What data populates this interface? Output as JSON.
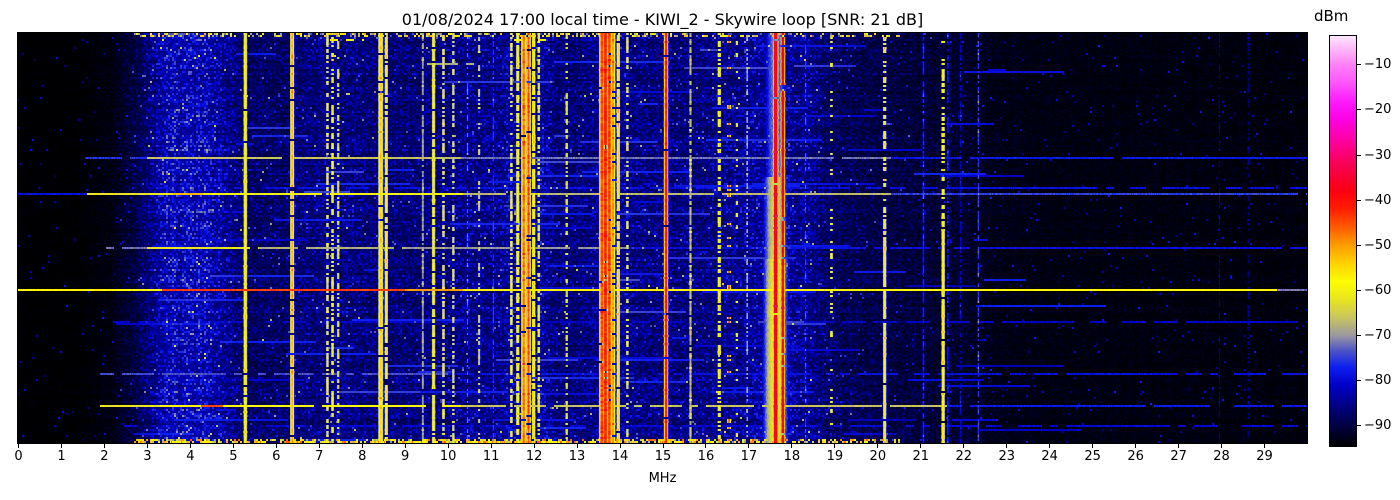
{
  "chart_data": {
    "type": "heatmap",
    "title": "01/08/2024 17:00 local time - KIWI_2 - Skywire loop [SNR: 21 dB]",
    "xlabel": "MHz",
    "x_range_mhz": [
      0,
      30
    ],
    "x_ticks": [
      0,
      1,
      2,
      3,
      4,
      5,
      6,
      7,
      8,
      9,
      10,
      11,
      12,
      13,
      14,
      15,
      16,
      17,
      18,
      19,
      20,
      21,
      22,
      23,
      24,
      25,
      26,
      27,
      28,
      29
    ],
    "y_ticks": [],
    "colorbar": {
      "label": "dBm",
      "ticks": [
        -10,
        -20,
        -30,
        -40,
        -50,
        -60,
        -70,
        -80,
        -90
      ],
      "vmin": -94.5,
      "vmax": -3.6,
      "stops": [
        [
          -94.5,
          "#000000"
        ],
        [
          -90,
          "#000041"
        ],
        [
          -86,
          "#00007d"
        ],
        [
          -81,
          "#0000c8"
        ],
        [
          -77,
          "#0d1ff0"
        ],
        [
          -73.5,
          "#4a52c8"
        ],
        [
          -70,
          "#9b97a0"
        ],
        [
          -66,
          "#c8c55e"
        ],
        [
          -62,
          "#e8e61e"
        ],
        [
          -58,
          "#fdfd00"
        ],
        [
          -54,
          "#ffd300"
        ],
        [
          -50,
          "#ff9d00"
        ],
        [
          -46,
          "#ff5a00"
        ],
        [
          -42,
          "#ff1e00"
        ],
        [
          -38,
          "#fb0011"
        ],
        [
          -34,
          "#f7003c"
        ],
        [
          -30,
          "#fb0071"
        ],
        [
          -26,
          "#ff00ad"
        ],
        [
          -22,
          "#fe00e4"
        ],
        [
          -18,
          "#fe1cfe"
        ],
        [
          -14,
          "#fe55fa"
        ],
        [
          -10,
          "#fd81f6"
        ],
        [
          -6,
          "#fdc0f8"
        ],
        [
          -3.6,
          "#fee7fc"
        ]
      ]
    },
    "noise_envelope": [
      [
        0,
        0.05
      ],
      [
        1.4,
        0.055
      ],
      [
        2.2,
        0.1
      ],
      [
        2.8,
        0.3
      ],
      [
        3.2,
        0.5
      ],
      [
        3.6,
        0.6
      ],
      [
        4.3,
        0.6
      ],
      [
        4.8,
        0.5
      ],
      [
        5.3,
        0.38
      ],
      [
        6.2,
        0.37
      ],
      [
        6.9,
        0.45
      ],
      [
        7.8,
        0.46
      ],
      [
        8.4,
        0.41
      ],
      [
        9.2,
        0.42
      ],
      [
        10.0,
        0.46
      ],
      [
        10.8,
        0.46
      ],
      [
        11.5,
        0.52
      ],
      [
        12.2,
        0.52
      ],
      [
        12.8,
        0.4
      ],
      [
        13.3,
        0.45
      ],
      [
        14.0,
        0.5
      ],
      [
        14.8,
        0.44
      ],
      [
        15.6,
        0.44
      ],
      [
        16.4,
        0.48
      ],
      [
        17.2,
        0.52
      ],
      [
        17.9,
        0.55
      ],
      [
        18.5,
        0.45
      ],
      [
        19.2,
        0.33
      ],
      [
        20.0,
        0.27
      ],
      [
        21.0,
        0.23
      ],
      [
        22.0,
        0.19
      ],
      [
        22.7,
        0.13
      ],
      [
        23.5,
        0.11
      ],
      [
        25.0,
        0.1
      ],
      [
        27.0,
        0.095
      ],
      [
        29.0,
        0.09
      ],
      [
        30,
        0.09
      ]
    ],
    "vertical_signals": [
      {
        "f": 5.28,
        "s": 1.2,
        "dbm": -57,
        "duty": [
          0.97,
          0.97
        ]
      },
      {
        "f": 6.37,
        "s": 1.2,
        "dbm": -52,
        "duty": [
          0.92,
          0.92
        ]
      },
      {
        "f": 7.19,
        "s": 1.0,
        "dbm": -61,
        "duty": [
          0.55,
          0.6
        ]
      },
      {
        "f": 7.31,
        "s": 1.0,
        "dbm": -60,
        "duty": [
          0.5,
          0.6
        ]
      },
      {
        "f": 7.44,
        "s": 1.0,
        "dbm": -62,
        "duty": [
          0.45,
          0.5
        ]
      },
      {
        "f": 8.43,
        "s": 1.5,
        "dbm": -54,
        "duty": [
          0.97,
          0.97
        ]
      },
      {
        "f": 8.56,
        "s": 1.1,
        "dbm": -57,
        "duty": [
          0.85,
          0.8
        ]
      },
      {
        "f": 9.41,
        "s": 1.1,
        "dbm": -69,
        "duty": [
          0.8,
          0.8
        ]
      },
      {
        "f": 9.66,
        "s": 1.2,
        "dbm": -59,
        "duty": [
          0.9,
          0.85
        ]
      },
      {
        "f": 9.89,
        "s": 1.1,
        "dbm": -62,
        "duty": [
          0.65,
          0.6
        ]
      },
      {
        "f": 10.12,
        "s": 1.0,
        "dbm": -62,
        "duty": [
          0.5,
          0.5
        ]
      },
      {
        "f": 10.45,
        "s": 0.9,
        "dbm": -72,
        "duty": [
          0.5,
          0.5
        ]
      },
      {
        "f": 10.72,
        "s": 1.0,
        "dbm": -64,
        "duty": [
          0.4,
          0.45
        ]
      },
      {
        "f": 11.05,
        "s": 0.9,
        "dbm": -75,
        "duty": [
          0.6,
          0.6
        ]
      },
      {
        "f": 11.47,
        "s": 1.0,
        "dbm": -60,
        "duty": [
          0.6,
          0.65
        ]
      },
      {
        "f": 11.62,
        "s": 1.1,
        "dbm": -57,
        "duty": [
          0.8,
          0.8
        ]
      },
      {
        "f": 11.76,
        "s": 1.4,
        "dbm": -47,
        "duty": [
          0.96,
          0.96
        ]
      },
      {
        "f": 11.87,
        "s": 1.2,
        "dbm": -45,
        "duty": [
          0.9,
          0.9
        ]
      },
      {
        "f": 11.99,
        "s": 1.1,
        "dbm": -56,
        "duty": [
          0.85,
          0.8
        ]
      },
      {
        "f": 12.11,
        "s": 1.0,
        "dbm": -60,
        "duty": [
          0.6,
          0.6
        ]
      },
      {
        "f": 12.76,
        "s": 1.0,
        "dbm": -62,
        "duty": [
          0.4,
          0.45
        ]
      },
      {
        "f": 13.58,
        "s": 1.5,
        "dbm": -44,
        "duty": [
          0.97,
          0.97
        ]
      },
      {
        "f": 13.66,
        "s": 1.5,
        "dbm": -41,
        "duty": [
          0.97,
          0.97
        ]
      },
      {
        "f": 13.75,
        "s": 1.4,
        "dbm": -43,
        "duty": [
          0.95,
          0.95
        ]
      },
      {
        "f": 13.84,
        "s": 1.2,
        "dbm": -49,
        "duty": [
          0.9,
          0.9
        ]
      },
      {
        "f": 13.96,
        "s": 1.1,
        "dbm": -55,
        "duty": [
          0.9,
          0.9
        ]
      },
      {
        "f": 14.17,
        "s": 1.0,
        "dbm": -61,
        "duty": [
          0.45,
          0.5
        ]
      },
      {
        "f": 15.07,
        "s": 1.1,
        "dbm": -40,
        "duty": [
          0.97,
          0.97
        ]
      },
      {
        "f": 15.64,
        "s": 1.1,
        "dbm": -67,
        "duty": [
          0.8,
          0.85
        ],
        "burst": -58
      },
      {
        "f": 16.31,
        "s": 1.1,
        "dbm": -56,
        "duty": [
          0.55,
          0.6
        ]
      },
      {
        "f": 16.54,
        "s": 1.0,
        "dbm": -45,
        "duty": [
          0.16,
          0.16
        ]
      },
      {
        "f": 16.72,
        "s": 0.9,
        "dbm": -58,
        "duty": [
          0.15,
          0.15
        ]
      },
      {
        "f": 16.96,
        "s": 0.9,
        "dbm": -68,
        "duty": [
          0.5,
          0.5
        ]
      },
      {
        "f": 17.62,
        "s": 1.3,
        "dbm": -34,
        "duty": [
          0.97,
          0.97
        ],
        "glow": {
          "sigma": 7,
          "top": -71,
          "mid": -64,
          "bot": -61
        }
      },
      {
        "f": 17.79,
        "s": 1.1,
        "dbm": -37,
        "duty": [
          0.93,
          0.93
        ]
      },
      {
        "f": 18.32,
        "s": 0.9,
        "dbm": -74,
        "duty": [
          0.5,
          0.5
        ]
      },
      {
        "f": 18.92,
        "s": 1.0,
        "dbm": -58,
        "duty": [
          0.2,
          0.22
        ]
      },
      {
        "f": 20.16,
        "s": 1.1,
        "dbm": -57,
        "duty": [
          0.55,
          0.95
        ]
      },
      {
        "f": 21.06,
        "s": 0.9,
        "dbm": -77,
        "duty": [
          0.8,
          0.8
        ]
      },
      {
        "f": 21.52,
        "s": 1.1,
        "dbm": -57,
        "duty": [
          0.5,
          0.95
        ]
      },
      {
        "f": 21.63,
        "s": 0.9,
        "dbm": -77,
        "duty": [
          0.7,
          0.7
        ]
      },
      {
        "f": 21.92,
        "s": 0.8,
        "dbm": -80,
        "duty": [
          0.6,
          0.6
        ]
      },
      {
        "f": 22.34,
        "s": 0.9,
        "dbm": -75,
        "duty": [
          0.7,
          0.7
        ]
      },
      {
        "f": 27.95,
        "s": 0.8,
        "dbm": -84,
        "duty": [
          0.55,
          0.55
        ]
      },
      {
        "f": 28.62,
        "s": 0.8,
        "dbm": -84,
        "duty": [
          0.5,
          0.5
        ]
      }
    ],
    "horizontal_events": [
      {
        "y": 0.015,
        "duty": 0.7,
        "segs": [
          [
            6.9,
            8.05,
            -57
          ],
          [
            11.3,
            12.3,
            -60
          ]
        ]
      },
      {
        "y": 0.072,
        "duty": 0.8,
        "segs": [
          [
            9.5,
            10.75,
            -68
          ]
        ]
      },
      {
        "y": 0.3,
        "duty": 0.95,
        "segs": [
          [
            1.55,
            3.0,
            -76
          ],
          [
            3.0,
            10.3,
            -66
          ],
          [
            10.3,
            20.3,
            -72
          ],
          [
            20.3,
            30,
            -78
          ]
        ]
      },
      {
        "y": 0.378,
        "duty": 0.8,
        "segs": [
          [
            3.2,
            30,
            -79
          ]
        ]
      },
      {
        "y": 0.392,
        "duty": 0.95,
        "segs": [
          [
            0,
            1.6,
            -79
          ],
          [
            1.6,
            3.6,
            -62
          ],
          [
            3.6,
            4.3,
            -52
          ],
          [
            4.3,
            10.35,
            -60
          ],
          [
            10.35,
            20.3,
            -67
          ],
          [
            20.3,
            30,
            -75
          ]
        ]
      },
      {
        "y": 0.522,
        "duty": 0.85,
        "segs": [
          [
            2.0,
            3.0,
            -72
          ],
          [
            3.0,
            5.6,
            -62
          ],
          [
            5.6,
            9.0,
            -68
          ],
          [
            9.0,
            14.2,
            -70
          ],
          [
            14.2,
            30,
            -79
          ]
        ]
      },
      {
        "y": 0.625,
        "duty": 1.0,
        "segs": [
          [
            0,
            3.35,
            -57
          ],
          [
            3.35,
            9.0,
            -44
          ],
          [
            9.0,
            10.35,
            -50
          ],
          [
            10.35,
            20.3,
            -57
          ],
          [
            20.3,
            29.3,
            -58
          ],
          [
            29.3,
            30,
            -72
          ]
        ]
      },
      {
        "y": 0.7,
        "duty": 0.7,
        "segs": [
          [
            2.2,
            30,
            -81
          ]
        ]
      },
      {
        "y": 0.83,
        "duty": 0.8,
        "segs": [
          [
            1.9,
            10,
            -74
          ],
          [
            10,
            30,
            -79
          ]
        ]
      },
      {
        "y": 0.908,
        "duty": 0.9,
        "segs": [
          [
            1.9,
            3.3,
            -62
          ],
          [
            3.3,
            4.25,
            -58
          ],
          [
            4.25,
            4.75,
            -45
          ],
          [
            4.75,
            10.3,
            -58
          ],
          [
            10.3,
            21.6,
            -66
          ],
          [
            21.6,
            30,
            -78
          ]
        ]
      },
      {
        "y": 0.955,
        "duty": 0.7,
        "segs": [
          [
            2.5,
            30,
            -80
          ]
        ]
      },
      {
        "y": 0.995,
        "duty": 0.35,
        "hot": true,
        "segs": [
          [
            3.2,
            18.2,
            -58
          ]
        ]
      }
    ],
    "texture": {
      "seed": 42,
      "streaks": 110,
      "blob_range_mhz": [
        3.2,
        4.8
      ]
    }
  }
}
